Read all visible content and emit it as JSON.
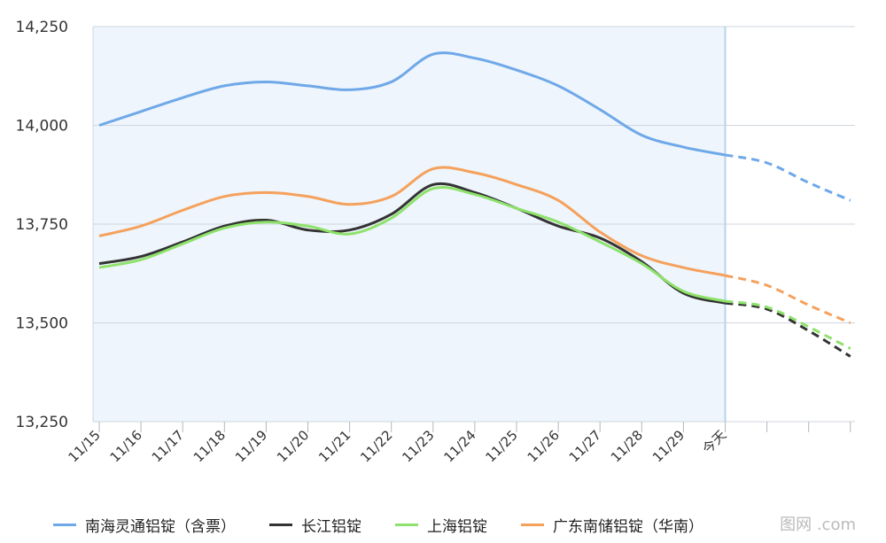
{
  "chart_data": {
    "type": "line",
    "categories": [
      "11/15",
      "11/16",
      "11/17",
      "11/18",
      "11/19",
      "11/20",
      "11/21",
      "11/22",
      "11/23",
      "11/24",
      "11/25",
      "11/26",
      "11/27",
      "11/28",
      "11/29",
      "今天",
      "",
      "",
      ""
    ],
    "forecast_start_index": 15,
    "ylim": [
      13250,
      14250
    ],
    "yticks": [
      "14,250",
      "14,000",
      "13,750",
      "13,500",
      "13,250"
    ],
    "ytick_values": [
      14250,
      14000,
      13750,
      13500,
      13250
    ],
    "shaded_region": "history (11/15 – 今天)",
    "grid": true,
    "legend_position": "bottom",
    "series": [
      {
        "name": "南海灵通铝锭（含票）",
        "color": "#6fa8e8",
        "values": [
          14000,
          14035,
          14070,
          14100,
          14110,
          14100,
          14090,
          14110,
          14180,
          14170,
          14140,
          14100,
          14040,
          13975,
          13945,
          13925,
          13905,
          13855,
          13810
        ]
      },
      {
        "name": "长江铝锭",
        "color": "#333333",
        "values": [
          13650,
          13668,
          13705,
          13745,
          13760,
          13735,
          13735,
          13775,
          13850,
          13830,
          13790,
          13745,
          13715,
          13655,
          13575,
          13550,
          13535,
          13480,
          13415
        ]
      },
      {
        "name": "上海铝锭",
        "color": "#8ee26b",
        "values": [
          13640,
          13660,
          13700,
          13740,
          13755,
          13745,
          13725,
          13765,
          13840,
          13825,
          13790,
          13755,
          13705,
          13650,
          13580,
          13555,
          13540,
          13490,
          13435
        ]
      },
      {
        "name": "广东南储铝锭（华南）",
        "color": "#f5a15c",
        "values": [
          13720,
          13745,
          13785,
          13820,
          13830,
          13820,
          13800,
          13820,
          13890,
          13880,
          13850,
          13810,
          13730,
          13670,
          13640,
          13620,
          13595,
          13545,
          13500
        ]
      }
    ]
  },
  "watermark_text": "图网  .com"
}
